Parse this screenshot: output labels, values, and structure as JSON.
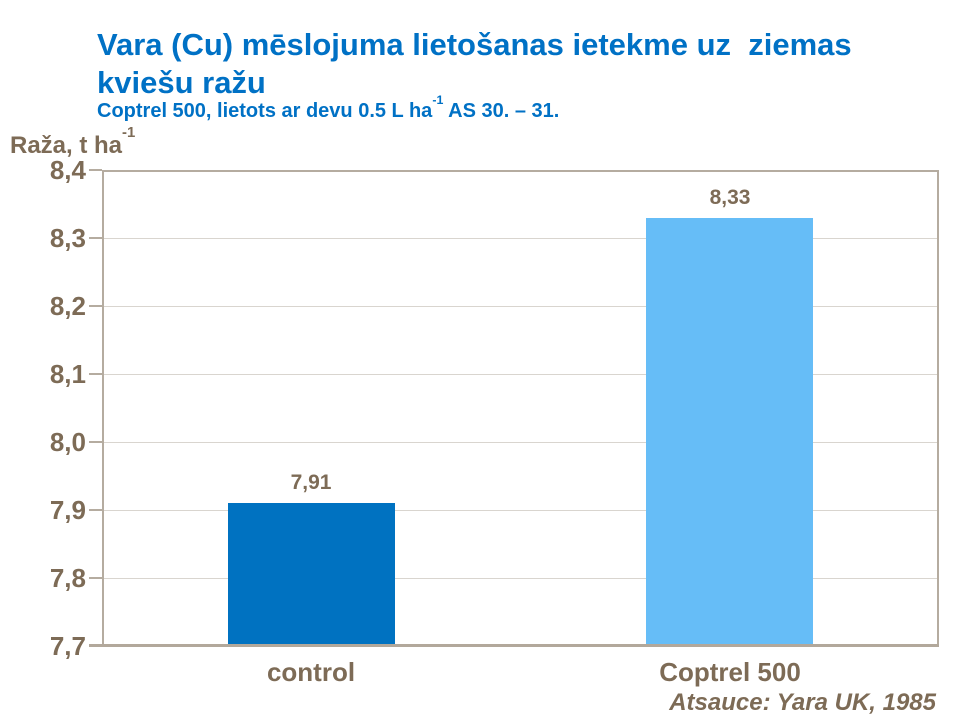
{
  "slide": {
    "title_line1": "Vara (Cu) mēslojuma lietošanas ietekme uz  ziemas",
    "title_line2": "kviešu ražu",
    "subtitle_pre": "Coptrel 500, lietots ar devu 0.5 L ha",
    "subtitle_sup": "-1",
    "subtitle_post": " AS 30. – 31.",
    "source": "Atsauce: Yara UK, 1985"
  },
  "axis": {
    "unit_pre": "Raža, t ha",
    "unit_sup": "-1"
  },
  "colors": {
    "title_blue": "#0071C5",
    "chart_brown": "#7D6B56",
    "border_tan": "#B5ACA0",
    "axis_tan": "#B2A89B",
    "grid_gray": "#D9D5CF",
    "bar_dark_blue": "#0072C1",
    "bar_light_blue": "#66BDF7"
  },
  "chart_data": {
    "type": "bar",
    "title": "Vara (Cu) mēslojuma lietošanas ietekme uz ziemas kviešu ražu",
    "subtitle": "Coptrel 500, lietots ar devu 0.5 L ha-1 AS 30. – 31.",
    "ylabel": "Raža, t ha-1",
    "xlabel": "",
    "categories": [
      "control",
      "Coptrel 500"
    ],
    "values": [
      7.91,
      8.33
    ],
    "value_labels": [
      "7,91",
      "8,33"
    ],
    "bar_colors": [
      "#0072C1",
      "#66BDF7"
    ],
    "ylim": [
      7.7,
      8.4
    ],
    "ytick_step": 0.1,
    "ytick_labels": [
      "7,7",
      "7,8",
      "7,9",
      "8,0",
      "8,1",
      "8,2",
      "8,3",
      "8,4"
    ],
    "grid": "horizontal",
    "legend": "none",
    "source": "Atsauce: Yara UK, 1985"
  }
}
